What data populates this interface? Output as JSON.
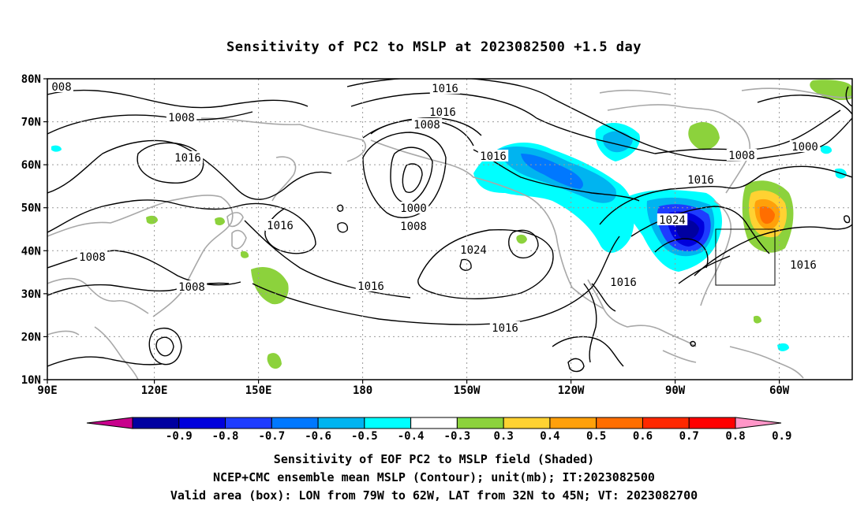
{
  "title": "Sensitivity of PC2 to MSLP at 2023082500 +1.5 day",
  "axes": {
    "lat_labels": [
      "80N",
      "70N",
      "60N",
      "50N",
      "40N",
      "30N",
      "20N",
      "10N"
    ],
    "lon_labels": [
      "90E",
      "120E",
      "150E",
      "180",
      "150W",
      "120W",
      "90W",
      "60W"
    ]
  },
  "contour_labels": [
    {
      "text": "008"
    },
    {
      "text": "1016"
    },
    {
      "text": "1008"
    },
    {
      "text": "1016"
    },
    {
      "text": "1016"
    },
    {
      "text": "1008"
    },
    {
      "text": "1016"
    },
    {
      "text": "1000"
    },
    {
      "text": "1008"
    },
    {
      "text": "1008"
    },
    {
      "text": "1024"
    },
    {
      "text": "1008"
    },
    {
      "text": "1016"
    },
    {
      "text": "1016"
    },
    {
      "text": "1016"
    },
    {
      "text": "1024"
    },
    {
      "text": "1008"
    },
    {
      "text": "1000"
    },
    {
      "text": "1016"
    },
    {
      "text": "1016"
    },
    {
      "text": "1016"
    }
  ],
  "colorbar": {
    "colors": [
      "#c8008c",
      "#0000a0",
      "#0000dc",
      "#1e3cff",
      "#0078ff",
      "#00b4f0",
      "#00ffff",
      "#ffffff",
      "#8cd23c",
      "#ffd232",
      "#ffa00a",
      "#ff6e00",
      "#ff2800",
      "#ff0000",
      "#ff96c8"
    ],
    "labels": [
      "-0.9",
      "-0.8",
      "-0.7",
      "-0.6",
      "-0.5",
      "-0.4",
      "-0.3",
      "0.3",
      "0.4",
      "0.5",
      "0.6",
      "0.7",
      "0.8",
      "0.9"
    ]
  },
  "captions": {
    "line1": "Sensitivity of EOF PC2 to MSLP field (Shaded)",
    "line2": "NCEP+CMC ensemble mean MSLP (Contour); unit(mb); IT:2023082500",
    "line3": "Valid area (box): LON from 79W to 62W, LAT from 32N to 45N; VT: 2023082700"
  }
}
